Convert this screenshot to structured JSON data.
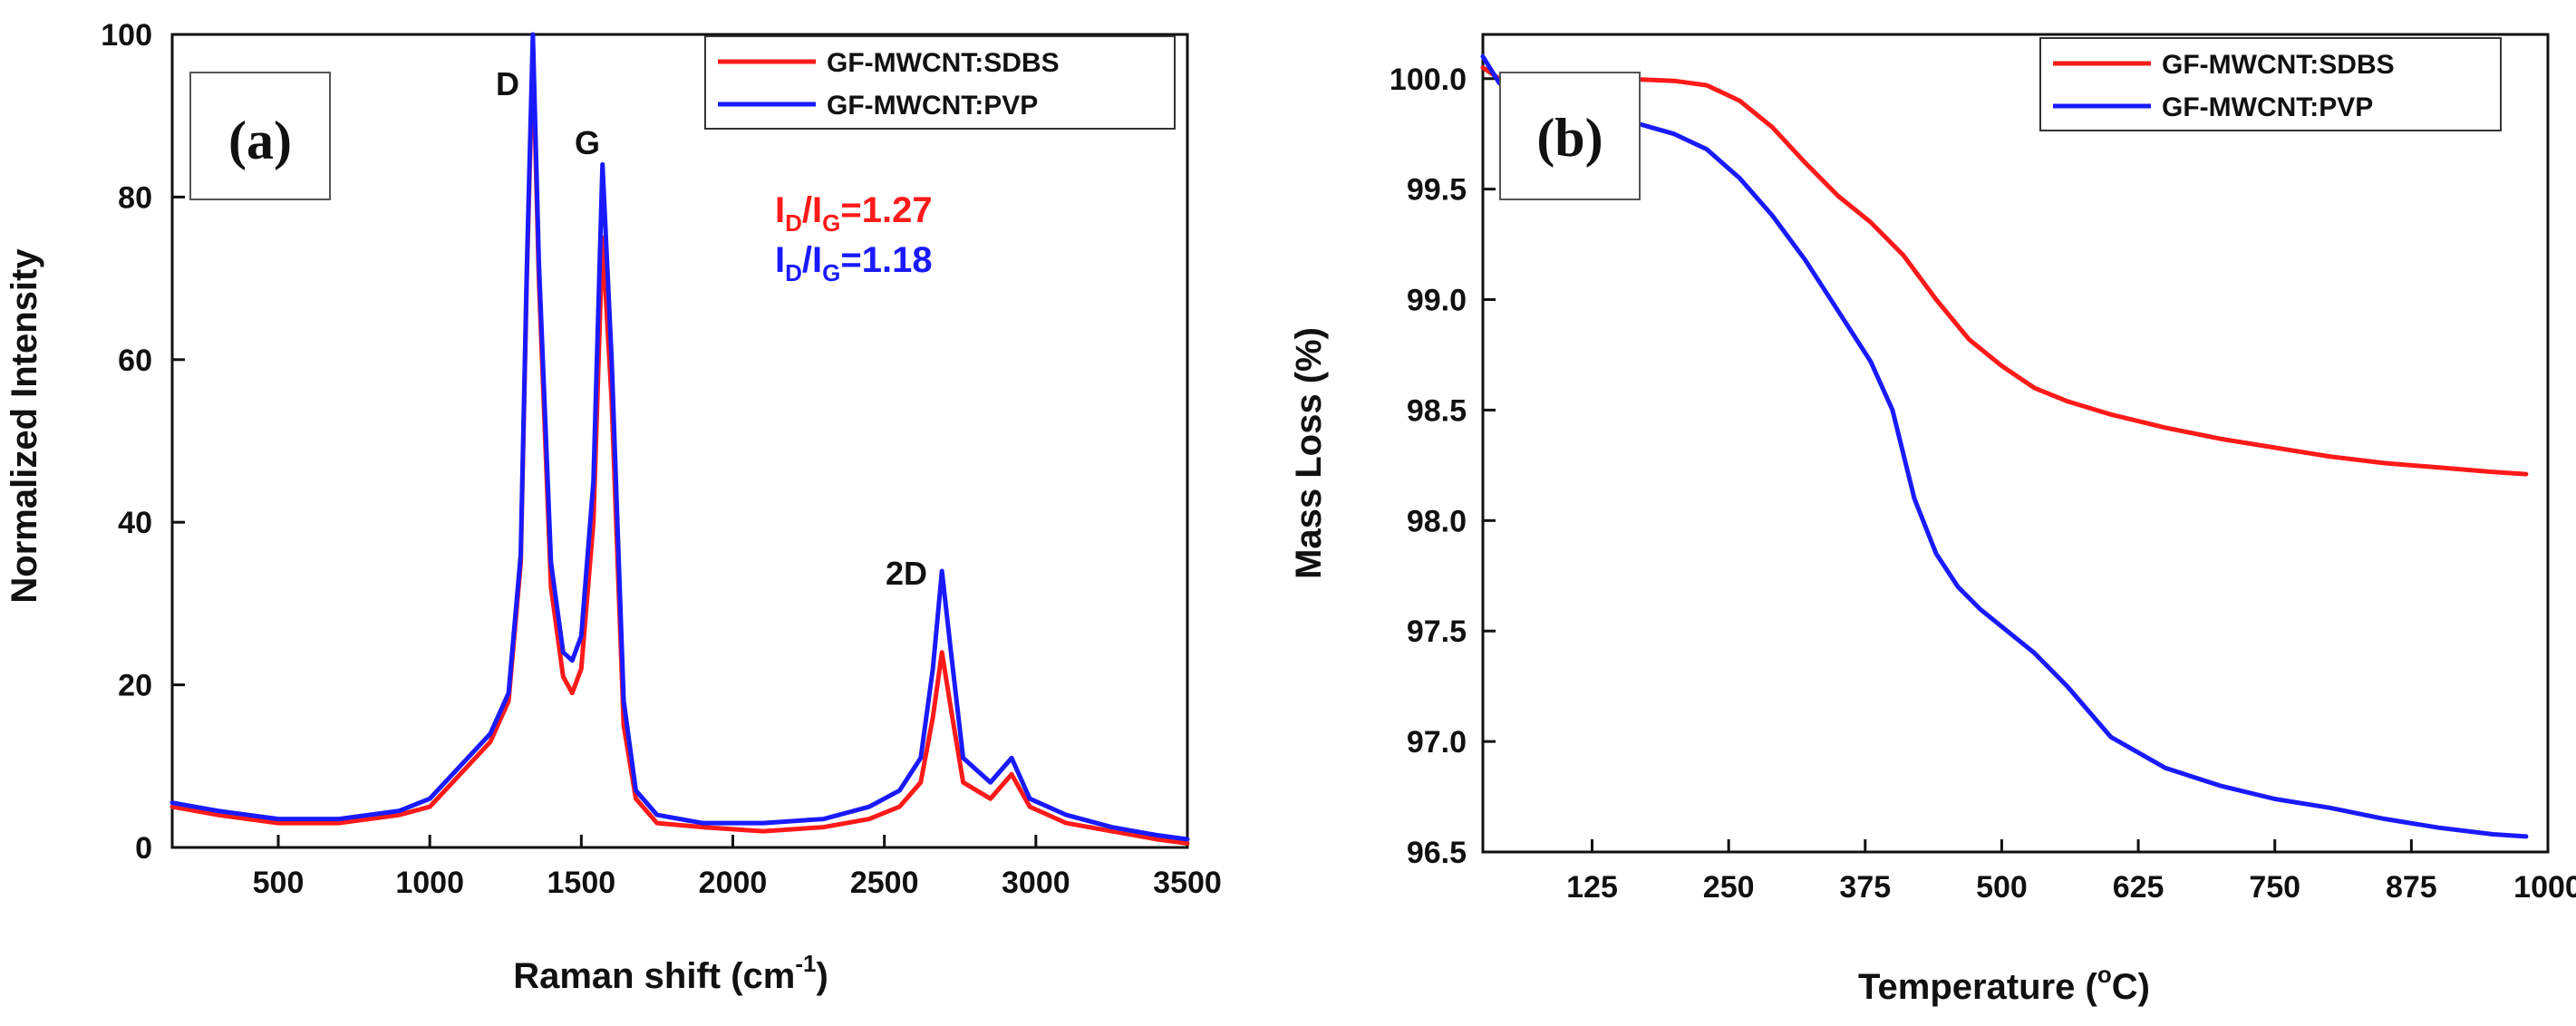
{
  "colors": {
    "sdbs": "#ff1a1a",
    "pvp": "#1a1aff",
    "axis": "#111111"
  },
  "chart_data": [
    {
      "type": "line",
      "panel_label": "(a)",
      "xlabel_main": "Raman shift (cm",
      "xlabel_sup": "-1",
      "xlabel_end": ")",
      "ylabel": "Normalized Intensity",
      "xlim": [
        150,
        3500
      ],
      "ylim": [
        0,
        100
      ],
      "xticks": [
        500,
        1000,
        1500,
        2000,
        2500,
        3000,
        3500
      ],
      "yticks": [
        0,
        20,
        40,
        60,
        80,
        100
      ],
      "legend": [
        "GF-MWCNT:SDBS",
        "GF-MWCNT:PVP"
      ],
      "legend_position": "top-right",
      "annotations": {
        "d_label": "D",
        "g_label": "G",
        "twod_label": "2D",
        "ratio_sdbs": {
          "i": "I",
          "sub_d": "D",
          "slash": "/",
          "i2": "I",
          "sub_g": "G",
          "value": "=1.27"
        },
        "ratio_pvp": {
          "i": "I",
          "sub_d": "D",
          "slash": "/",
          "i2": "I",
          "sub_g": "G",
          "value": "=1.18"
        }
      },
      "series": [
        {
          "name": "GF-MWCNT:SDBS",
          "x": [
            150,
            300,
            500,
            700,
            900,
            1000,
            1100,
            1200,
            1260,
            1300,
            1320,
            1340,
            1360,
            1400,
            1440,
            1470,
            1500,
            1540,
            1570,
            1600,
            1640,
            1680,
            1750,
            1900,
            2100,
            2300,
            2450,
            2550,
            2620,
            2660,
            2690,
            2720,
            2760,
            2850,
            2920,
            2980,
            3100,
            3250,
            3400,
            3500
          ],
          "y": [
            5,
            4,
            3,
            3,
            4,
            5,
            9,
            13,
            18,
            35,
            70,
            98,
            70,
            32,
            21,
            19,
            22,
            40,
            75,
            55,
            15,
            6,
            3,
            2.5,
            2,
            2.5,
            3.5,
            5,
            8,
            16,
            24,
            17,
            8,
            6,
            9,
            5,
            3,
            2,
            1,
            0.5
          ]
        },
        {
          "name": "GF-MWCNT:PVP",
          "x": [
            150,
            300,
            500,
            700,
            900,
            1000,
            1100,
            1200,
            1260,
            1300,
            1320,
            1340,
            1360,
            1400,
            1440,
            1470,
            1500,
            1540,
            1570,
            1600,
            1640,
            1680,
            1750,
            1900,
            2100,
            2300,
            2450,
            2550,
            2620,
            2660,
            2690,
            2720,
            2760,
            2850,
            2920,
            2980,
            3100,
            3250,
            3400,
            3500
          ],
          "y": [
            5.5,
            4.5,
            3.5,
            3.5,
            4.5,
            6,
            10,
            14,
            19,
            36,
            71,
            100,
            72,
            35,
            24,
            23,
            26,
            45,
            84,
            60,
            18,
            7,
            4,
            3,
            3,
            3.5,
            5,
            7,
            11,
            22,
            34,
            24,
            11,
            8,
            11,
            6,
            4,
            2.5,
            1.5,
            1
          ]
        }
      ]
    },
    {
      "type": "line",
      "panel_label": "(b)",
      "xlabel_main": "Temperature (",
      "xlabel_sup": "o",
      "xlabel_end": "C)",
      "ylabel": "Mass Loss (%)",
      "xlim": [
        25,
        1000
      ],
      "ylim": [
        96.5,
        100.2
      ],
      "xticks": [
        125,
        250,
        375,
        500,
        625,
        750,
        875,
        1000
      ],
      "yticks": [
        96.5,
        97.0,
        97.5,
        98.0,
        98.5,
        99.0,
        99.5,
        100.0
      ],
      "ytick_labels": [
        "96.5",
        "97.0",
        "97.5",
        "98.0",
        "98.5",
        "99.0",
        "99.5",
        "100.0"
      ],
      "legend": [
        "GF-MWCNT:SDBS",
        "GF-MWCNT:PVP"
      ],
      "legend_position": "top-right",
      "series": [
        {
          "name": "GF-MWCNT:SDBS",
          "x": [
            25,
            40,
            60,
            100,
            150,
            200,
            230,
            260,
            290,
            320,
            350,
            380,
            410,
            440,
            470,
            500,
            530,
            560,
            600,
            650,
            700,
            750,
            800,
            850,
            900,
            950,
            980
          ],
          "y": [
            100.05,
            100.0,
            100.0,
            100.0,
            100.0,
            99.99,
            99.97,
            99.9,
            99.78,
            99.62,
            99.47,
            99.35,
            99.2,
            99.0,
            98.82,
            98.7,
            98.6,
            98.54,
            98.48,
            98.42,
            98.37,
            98.33,
            98.29,
            98.26,
            98.24,
            98.22,
            98.21
          ]
        },
        {
          "name": "GF-MWCNT:PVP",
          "x": [
            25,
            40,
            60,
            100,
            150,
            200,
            230,
            260,
            290,
            320,
            350,
            380,
            400,
            420,
            440,
            460,
            480,
            500,
            530,
            560,
            600,
            650,
            700,
            750,
            800,
            850,
            900,
            950,
            980
          ],
          "y": [
            100.1,
            99.98,
            99.9,
            99.85,
            99.82,
            99.75,
            99.68,
            99.55,
            99.38,
            99.18,
            98.95,
            98.72,
            98.5,
            98.1,
            97.85,
            97.7,
            97.6,
            97.52,
            97.4,
            97.25,
            97.02,
            96.88,
            96.8,
            96.74,
            96.7,
            96.65,
            96.61,
            96.58,
            96.57
          ]
        }
      ]
    }
  ]
}
